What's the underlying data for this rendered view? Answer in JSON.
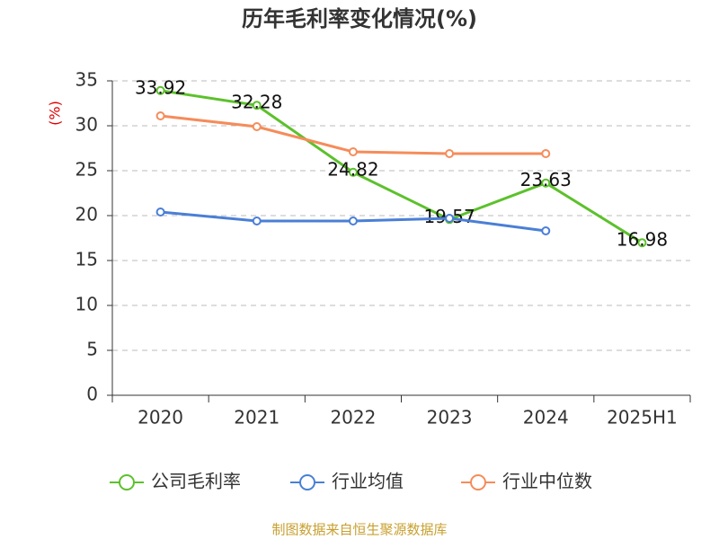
{
  "chart_data": {
    "type": "line",
    "title": "历年毛利率变化情况(%)",
    "y_label": "(%)",
    "categories": [
      "2020",
      "2021",
      "2022",
      "2023",
      "2024",
      "2025H1"
    ],
    "series": [
      {
        "name": "公司毛利率",
        "color": "#5cc12b",
        "values": [
          33.92,
          32.28,
          24.82,
          19.57,
          23.63,
          16.98
        ],
        "show_labels": true
      },
      {
        "name": "行业均值",
        "color": "#4a7fd6",
        "values": [
          20.4,
          19.4,
          19.4,
          19.7,
          18.3,
          null
        ],
        "show_labels": false
      },
      {
        "name": "行业中位数",
        "color": "#f58c5a",
        "values": [
          31.1,
          29.9,
          27.1,
          26.9,
          26.9,
          null
        ],
        "show_labels": false
      }
    ],
    "ylim": [
      0,
      35
    ],
    "yticks": [
      0,
      5,
      10,
      15,
      20,
      25,
      30,
      35
    ],
    "grid": true,
    "source": "制图数据来自恒生聚源数据库"
  }
}
